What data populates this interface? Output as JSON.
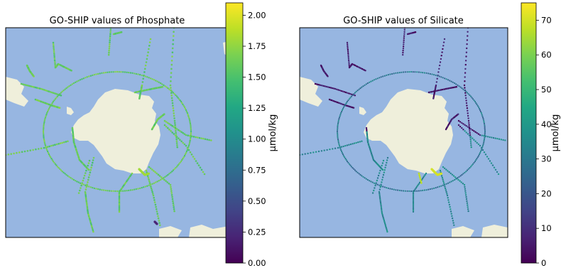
{
  "chart_data": [
    {
      "type": "scatter",
      "title": "GO-SHIP values of Phosphate",
      "colorbar": {
        "label": "μmol/kg",
        "range": [
          0.0,
          2.1
        ],
        "colormap": "viridis",
        "ticks": [
          0.0,
          0.25,
          0.5,
          0.75,
          1.0,
          1.25,
          1.5,
          1.75,
          2.0
        ],
        "tick_labels": [
          "0.00",
          "0.25",
          "0.50",
          "0.75",
          "1.00",
          "1.25",
          "1.50",
          "1.75",
          "2.00"
        ]
      },
      "ocean_color": "#97b6e1",
      "land_color": "#efefdb",
      "typical_value": 1.6,
      "coastal_value": 1.8,
      "low_value_stations": 0.2
    },
    {
      "type": "scatter",
      "title": "GO-SHIP values of Silicate",
      "colorbar": {
        "label": "μmol/kg",
        "range": [
          0,
          75
        ],
        "colormap": "viridis",
        "ticks": [
          0,
          10,
          20,
          30,
          40,
          50,
          60,
          70
        ],
        "tick_labels": [
          "0",
          "10",
          "20",
          "30",
          "40",
          "50",
          "60",
          "70"
        ]
      },
      "ocean_color": "#97b6e1",
      "land_color": "#efefdb",
      "northern_value": 5,
      "southern_value": 70
    }
  ]
}
